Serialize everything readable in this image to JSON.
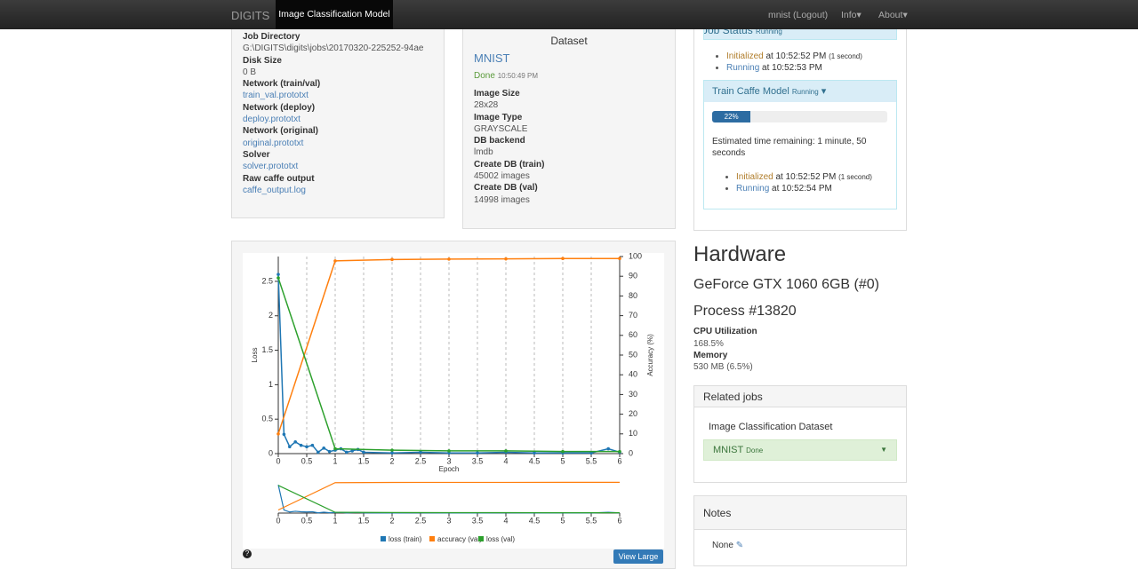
{
  "nav": {
    "brand": "DIGITS",
    "active": "Image Classification Model",
    "links": [
      "mnist (Logout)",
      "Info",
      "About"
    ]
  },
  "job": {
    "items": [
      {
        "label": "Job Directory",
        "value": "G:\\DIGITS\\digits\\jobs\\20170320-225252-94ae"
      },
      {
        "label": "Disk Size",
        "value": "0 B"
      },
      {
        "label": "Network (train/val)",
        "link": "train_val.prototxt"
      },
      {
        "label": "Network (deploy)",
        "link": "deploy.prototxt"
      },
      {
        "label": "Network (original)",
        "link": "original.prototxt"
      },
      {
        "label": "Solver",
        "link": "solver.prototxt"
      },
      {
        "label": "Raw caffe output",
        "link": "caffe_output.log"
      }
    ]
  },
  "dataset": {
    "title": "Dataset",
    "name": "MNIST",
    "status": "Done",
    "time": "10:50:49 PM",
    "items": [
      {
        "label": "Image Size",
        "value": "28x28"
      },
      {
        "label": "Image Type",
        "value": "GRAYSCALE"
      },
      {
        "label": "DB backend",
        "value": "lmdb"
      },
      {
        "label": "Create DB (train)",
        "value": "45002 images"
      },
      {
        "label": "Create DB (val)",
        "value": "14998 images"
      }
    ]
  },
  "status": {
    "title": "Job Status",
    "state": "Running",
    "rows": [
      {
        "state": "Initialized",
        "text": "at 10:52:52 PM",
        "note": "(1 second)"
      },
      {
        "state": "Running",
        "text": "at 10:52:53 PM"
      }
    ],
    "task": {
      "title": "Train Caffe Model",
      "state": "Running",
      "progress": 22,
      "progress_label": "22%",
      "estimate": "Estimated time remaining: 1 minute, 50 seconds",
      "rows": [
        {
          "state": "Initialized",
          "text": "at 10:52:52 PM",
          "note": "(1 second)"
        },
        {
          "state": "Running",
          "text": "at 10:52:54 PM"
        }
      ]
    }
  },
  "hardware": {
    "title": "Hardware",
    "gpu": "GeForce GTX 1060 6GB (#0)",
    "process": "Process #13820",
    "cpu_label": "CPU Utilization",
    "cpu": "168.5%",
    "mem_label": "Memory",
    "mem": "530 MB (6.5%)"
  },
  "related": {
    "title": "Related jobs",
    "job": "Image Classification Dataset",
    "name": "MNIST",
    "status": "Done"
  },
  "notes": {
    "title": "Notes",
    "text": "None"
  },
  "view_large": "View Large",
  "chart_data": {
    "type": "line",
    "x_label": "Epoch",
    "y_label": "Loss",
    "y2_label": "Accuracy (%)",
    "xlim": [
      0,
      6
    ],
    "ylim": [
      0,
      2.86
    ],
    "y2lim": [
      0,
      100
    ],
    "xticks": [
      0,
      0.5,
      1,
      1.5,
      2,
      2.5,
      3,
      3.5,
      4,
      4.5,
      5,
      5.5,
      6
    ],
    "yticks": [
      0,
      0.5,
      1,
      1.5,
      2,
      2.5
    ],
    "y2ticks": [
      0,
      10,
      20,
      30,
      40,
      50,
      60,
      70,
      80,
      90,
      100
    ],
    "series": [
      {
        "name": "loss (train)",
        "color": "#1f77b4",
        "x": [
          0,
          0.1,
          0.2,
          0.3,
          0.4,
          0.5,
          0.6,
          0.7,
          0.8,
          0.9,
          1,
          1.1,
          1.2,
          1.3,
          1.4,
          1.5,
          2,
          2.5,
          3,
          3.5,
          4,
          4.5,
          5,
          5.5,
          5.8,
          6
        ],
        "values": [
          2.6,
          0.28,
          0.1,
          0.17,
          0.12,
          0.1,
          0.12,
          0.02,
          0.08,
          0.03,
          0.05,
          0.07,
          0.02,
          0.04,
          0.06,
          0.02,
          0.01,
          0.02,
          0.01,
          0.01,
          0.02,
          0.01,
          0.01,
          0.01,
          0.07,
          0.02
        ]
      },
      {
        "name": "accuracy (val)",
        "color": "#ff7f0e",
        "axis": "y2",
        "x": [
          0,
          1,
          2,
          3,
          4,
          5,
          6
        ],
        "values": [
          10,
          97.8,
          98.5,
          98.7,
          98.8,
          99,
          99
        ]
      },
      {
        "name": "loss (val)",
        "color": "#2ca02c",
        "x": [
          0,
          1,
          2,
          3,
          4,
          5,
          6
        ],
        "values": [
          2.55,
          0.07,
          0.05,
          0.04,
          0.04,
          0.03,
          0.03
        ]
      }
    ]
  }
}
